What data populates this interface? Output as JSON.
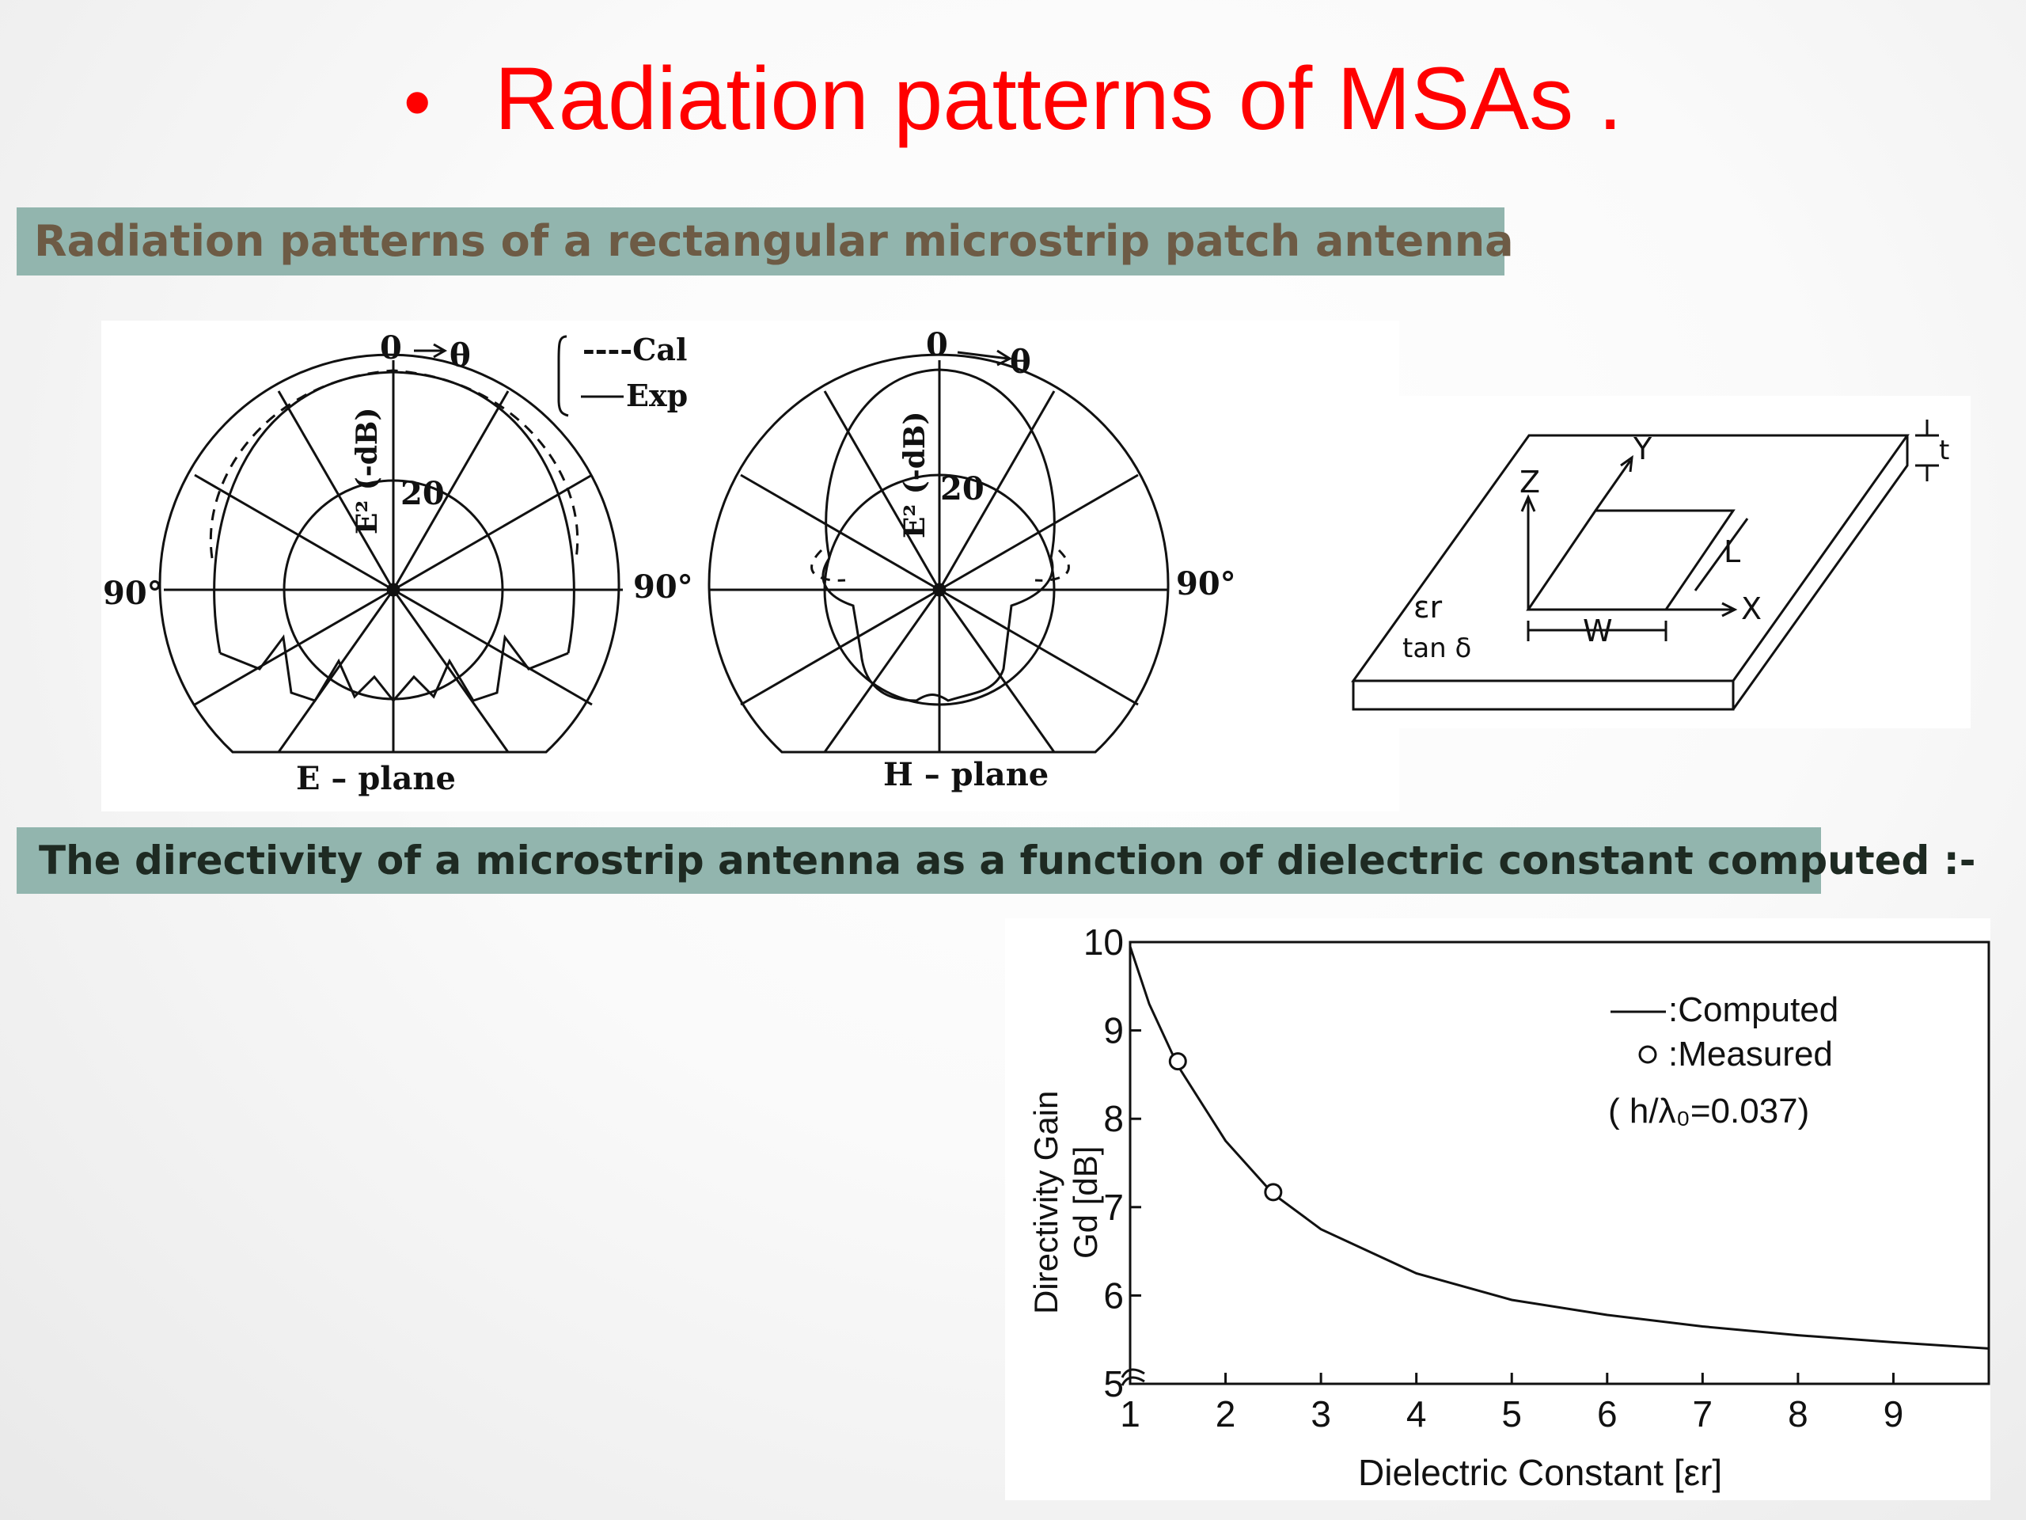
{
  "slide": {
    "bullet": "•",
    "title": "Radiation patterns of MSAs .",
    "banner1": "Radiation patterns of a rectangular microstrip patch antenna",
    "banner2": "The directivity of a microstrip antenna as a function of dielectric constant computed :-"
  },
  "polar": {
    "top_label": "0",
    "theta": "θ",
    "axis_label": "E² (-dB)",
    "ring_label": "20",
    "side_label": "90°",
    "legend_cal": "----Cal",
    "legend_exp": "Exp",
    "e_caption": "E – plane",
    "h_caption": "H – plane"
  },
  "patch": {
    "z": "Z",
    "y": "Y",
    "x": "X",
    "l": "L",
    "w": "W",
    "t": "t",
    "er": "εr",
    "tan": "tan δ"
  },
  "chart_data": {
    "type": "line",
    "xlabel": "Dielectric Constant [εr]",
    "ylabel_line1": "Directivity Gain",
    "ylabel_line2": "Gd [dB]",
    "xlim": [
      1,
      10
    ],
    "ylim": [
      5,
      10
    ],
    "x_ticks": [
      "1",
      "2",
      "3",
      "4",
      "5",
      "6",
      "7",
      "8",
      "9"
    ],
    "y_ticks": [
      "5",
      "6",
      "7",
      "8",
      "9",
      "10"
    ],
    "series": [
      {
        "name": ":Computed",
        "x": [
          1.0,
          1.2,
          1.5,
          2.0,
          2.5,
          3.0,
          4.0,
          5.0,
          6.0,
          7.0,
          8.0,
          9.0,
          10.0
        ],
        "y": [
          9.95,
          9.3,
          8.6,
          7.75,
          7.15,
          6.75,
          6.25,
          5.95,
          5.78,
          5.65,
          5.55,
          5.47,
          5.4
        ]
      },
      {
        "name": ":Measured",
        "x": [
          1.5,
          2.5
        ],
        "y": [
          8.65,
          7.17
        ]
      }
    ],
    "annotation": "( h/λ₀=0.037)"
  }
}
